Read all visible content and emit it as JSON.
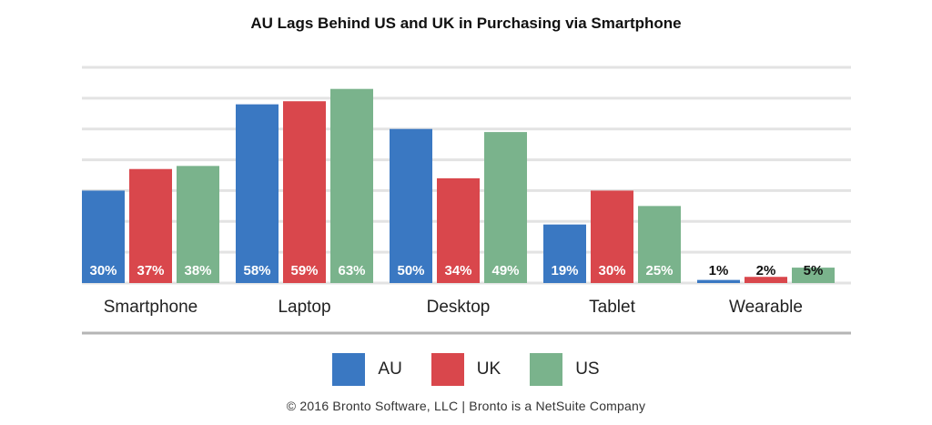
{
  "chart_data": {
    "type": "bar",
    "title": "AU Lags Behind US and UK in Purchasing via Smartphone",
    "categories": [
      "Smartphone",
      "Laptop",
      "Desktop",
      "Tablet",
      "Wearable"
    ],
    "series": [
      {
        "name": "AU",
        "color": "#3a78c2",
        "values": [
          30,
          58,
          50,
          19,
          1
        ],
        "labels": [
          "30%",
          "58%",
          "50%",
          "19%",
          "1%"
        ]
      },
      {
        "name": "UK",
        "color": "#d9474c",
        "values": [
          37,
          59,
          34,
          30,
          2
        ],
        "labels": [
          "37%",
          "59%",
          "34%",
          "30%",
          "2%"
        ]
      },
      {
        "name": "US",
        "color": "#7ab38c",
        "values": [
          38,
          63,
          49,
          25,
          5
        ],
        "labels": [
          "38%",
          "63%",
          "49%",
          "25%",
          "5%"
        ]
      }
    ],
    "ylim": [
      0,
      70
    ],
    "grid": true,
    "legend": "bottom"
  },
  "footer": "© 2016 Bronto Software, LLC | Bronto is a NetSuite Company"
}
